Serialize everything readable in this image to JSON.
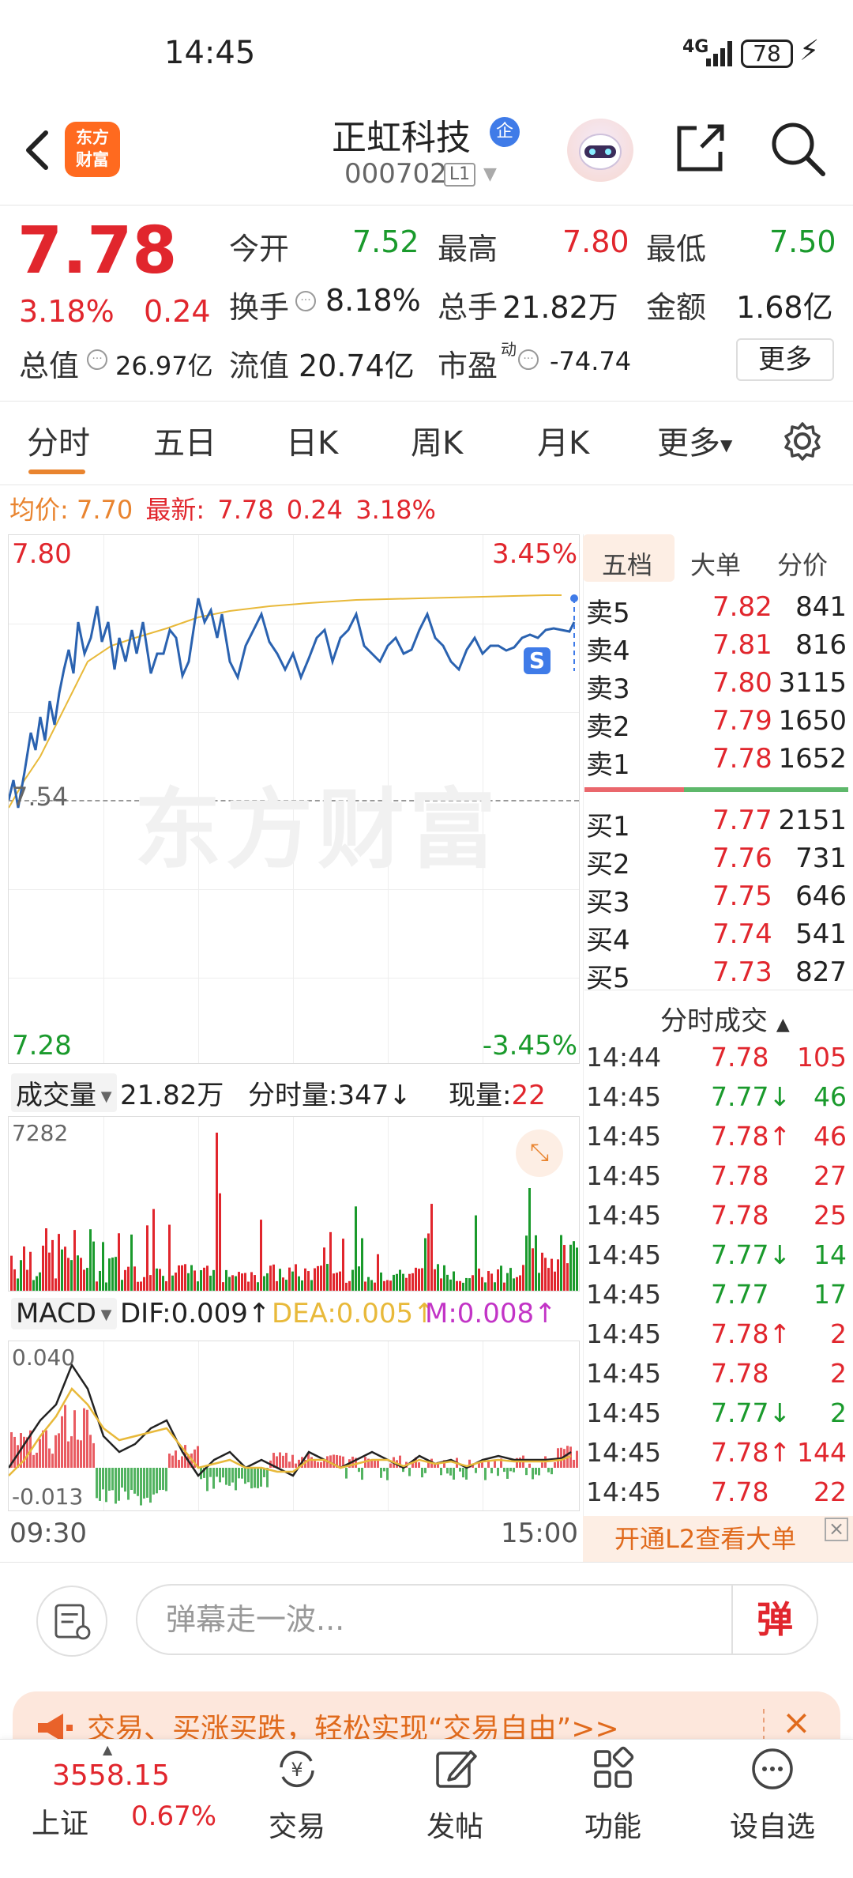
{
  "status_bar": {
    "time": "14:45",
    "network": "4G",
    "battery": "78"
  },
  "header": {
    "stock_name": "正虹科技",
    "badge": "企",
    "code": "000702",
    "level": "L1",
    "logo_line1": "东方",
    "logo_line2": "财富"
  },
  "quote": {
    "price": "7.78",
    "change_pct": "3.18%",
    "change": "0.24",
    "open_label": "今开",
    "open": "7.52",
    "high_label": "最高",
    "high": "7.80",
    "low_label": "最低",
    "low": "7.50",
    "turnover_label": "换手",
    "turnover": "8.18%",
    "volume_label": "总手",
    "volume": "21.82万",
    "amount_label": "金额",
    "amount": "1.68亿",
    "mktcap_label": "总值",
    "mktcap": "26.97亿",
    "float_label": "流值",
    "float_cap": "20.74亿",
    "pe_label": "市盈",
    "pe_sup": "动",
    "pe": "-74.74",
    "more_label": "更多"
  },
  "tabs": [
    "分时",
    "五日",
    "日K",
    "周K",
    "月K",
    "更多"
  ],
  "avg_line": {
    "avg_label": "均价:",
    "avg": "7.70",
    "latest_label": "最新:",
    "latest": "7.78",
    "change": "0.24",
    "pct": "3.18%"
  },
  "main_chart": {
    "y_max": "7.80",
    "y_max_pct": "3.45%",
    "y_mid": "7.54",
    "y_min": "7.28",
    "y_min_pct": "-3.45%",
    "watermark": "东方财富",
    "s_marker": "S"
  },
  "volume_bar": {
    "label": "成交量",
    "total": "21.82万",
    "tick_label": "分时量:347",
    "now_label": "现量:",
    "now": "22",
    "y_max": "7282"
  },
  "macd_bar": {
    "label": "MACD",
    "dif": "DIF:0.009",
    "dea": "DEA:0.005",
    "m": "M:0.008",
    "y_max": "0.040",
    "y_min": "-0.013"
  },
  "time_axis": {
    "start": "09:30",
    "end": "15:00"
  },
  "orderbook": {
    "tabs": [
      "五档",
      "大单",
      "分价"
    ],
    "asks": [
      {
        "label": "卖5",
        "price": "7.82",
        "vol": "841"
      },
      {
        "label": "卖4",
        "price": "7.81",
        "vol": "816"
      },
      {
        "label": "卖3",
        "price": "7.80",
        "vol": "3115"
      },
      {
        "label": "卖2",
        "price": "7.79",
        "vol": "1650"
      },
      {
        "label": "卖1",
        "price": "7.78",
        "vol": "1652"
      }
    ],
    "bids": [
      {
        "label": "买1",
        "price": "7.77",
        "vol": "2151"
      },
      {
        "label": "买2",
        "price": "7.76",
        "vol": "731"
      },
      {
        "label": "买3",
        "price": "7.75",
        "vol": "646"
      },
      {
        "label": "买4",
        "price": "7.74",
        "vol": "541"
      },
      {
        "label": "买5",
        "price": "7.73",
        "vol": "827"
      }
    ],
    "trades_title": "分时成交",
    "trades": [
      {
        "time": "14:44",
        "price": "7.78",
        "arrow": "",
        "vol": "105",
        "dir": "up"
      },
      {
        "time": "14:45",
        "price": "7.77",
        "arrow": "↓",
        "vol": "46",
        "dir": "down"
      },
      {
        "time": "14:45",
        "price": "7.78",
        "arrow": "↑",
        "vol": "46",
        "dir": "up"
      },
      {
        "time": "14:45",
        "price": "7.78",
        "arrow": "",
        "vol": "27",
        "dir": "up"
      },
      {
        "time": "14:45",
        "price": "7.78",
        "arrow": "",
        "vol": "25",
        "dir": "up"
      },
      {
        "time": "14:45",
        "price": "7.77",
        "arrow": "↓",
        "vol": "14",
        "dir": "down"
      },
      {
        "time": "14:45",
        "price": "7.77",
        "arrow": "",
        "vol": "17",
        "dir": "down"
      },
      {
        "time": "14:45",
        "price": "7.78",
        "arrow": "↑",
        "vol": "2",
        "dir": "up"
      },
      {
        "time": "14:45",
        "price": "7.78",
        "arrow": "",
        "vol": "2",
        "dir": "up"
      },
      {
        "time": "14:45",
        "price": "7.77",
        "arrow": "↓",
        "vol": "2",
        "dir": "down"
      },
      {
        "time": "14:45",
        "price": "7.78",
        "arrow": "↑",
        "vol": "144",
        "dir": "up"
      },
      {
        "time": "14:45",
        "price": "7.78",
        "arrow": "",
        "vol": "22",
        "dir": "up"
      }
    ],
    "l2_banner": "开通L2查看大单"
  },
  "danmaku": {
    "placeholder": "弹幕走一波...",
    "send_label": "弹"
  },
  "ad": {
    "text": "交易、买涨买跌，轻松实现“交易自由”>>"
  },
  "bottom_nav": {
    "index_value": "3558.15",
    "index_name": "上证",
    "index_pct": "0.67%",
    "items": [
      "交易",
      "发帖",
      "功能",
      "设自选"
    ]
  },
  "colors": {
    "up": "#e1262d",
    "down": "#1a9a2c",
    "accent": "#e9842f",
    "avg_line": "#e8b93a",
    "price_line": "#2a62b0"
  }
}
